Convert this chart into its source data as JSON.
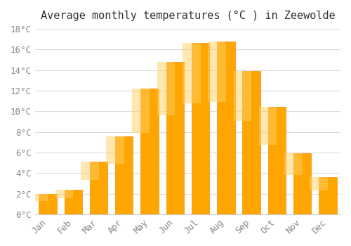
{
  "title": "Average monthly temperatures (°C ) in Zeewolde",
  "months": [
    "Jan",
    "Feb",
    "Mar",
    "Apr",
    "May",
    "Jun",
    "Jul",
    "Aug",
    "Sep",
    "Oct",
    "Nov",
    "Dec"
  ],
  "values": [
    2.0,
    2.4,
    5.1,
    7.6,
    12.2,
    14.8,
    16.6,
    16.8,
    13.9,
    10.4,
    5.9,
    3.6
  ],
  "bar_color": "#FFA500",
  "bar_edge_color": "#FF8C00",
  "ylim": [
    0,
    18
  ],
  "yticks": [
    0,
    2,
    4,
    6,
    8,
    10,
    12,
    14,
    16,
    18
  ],
  "ytick_labels": [
    "0°C",
    "2°C",
    "4°C",
    "6°C",
    "8°C",
    "10°C",
    "12°C",
    "14°C",
    "16°C",
    "18°C"
  ],
  "background_color": "#ffffff",
  "grid_color": "#dddddd",
  "title_fontsize": 11,
  "tick_fontsize": 9,
  "font_family": "monospace"
}
